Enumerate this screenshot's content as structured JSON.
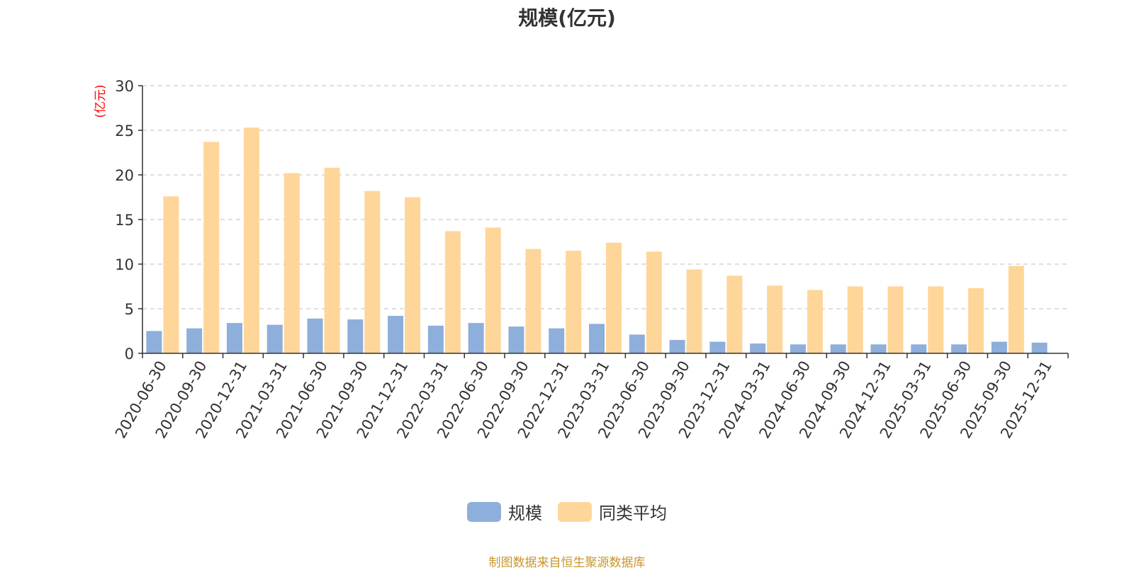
{
  "chart_data": {
    "type": "bar",
    "title": "规模(亿元)",
    "ylabel": "(亿元)",
    "xlabel": "",
    "ylim": [
      0,
      30
    ],
    "yticks": [
      0,
      5,
      10,
      15,
      20,
      25,
      30
    ],
    "grid": true,
    "legend_position": "bottom",
    "categories": [
      "2020-06-30",
      "2020-09-30",
      "2020-12-31",
      "2021-03-31",
      "2021-06-30",
      "2021-09-30",
      "2021-12-31",
      "2022-03-31",
      "2022-06-30",
      "2022-09-30",
      "2022-12-31",
      "2023-03-31",
      "2023-06-30",
      "2023-09-30",
      "2023-12-31",
      "2024-03-31",
      "2024-06-30",
      "2024-09-30",
      "2024-12-31",
      "2025-03-31",
      "2025-06-30",
      "2025-09-30",
      "2025-12-31"
    ],
    "series": [
      {
        "name": "规模",
        "color": "#8eaedb",
        "values": [
          2.5,
          2.8,
          3.4,
          3.2,
          3.9,
          3.8,
          4.2,
          3.1,
          3.4,
          3.0,
          2.8,
          3.3,
          2.1,
          1.5,
          1.3,
          1.1,
          1.0,
          1.0,
          1.0,
          1.0,
          1.0,
          1.3,
          1.2
        ]
      },
      {
        "name": "同类平均",
        "color": "#ffd699",
        "values": [
          17.6,
          23.7,
          25.3,
          20.2,
          20.8,
          18.2,
          17.5,
          13.7,
          14.1,
          11.7,
          11.5,
          12.4,
          11.4,
          9.4,
          8.7,
          7.6,
          7.1,
          7.5,
          7.5,
          7.5,
          7.3,
          9.8,
          null
        ]
      }
    ]
  },
  "source_text": "制图数据来自恒生聚源数据库",
  "colors": {
    "axis": "#333333",
    "grid": "#cccccc",
    "ylabel": "#ff0000",
    "source": "#c8962e"
  }
}
